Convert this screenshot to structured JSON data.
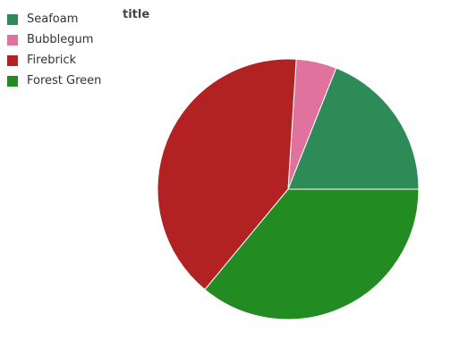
{
  "chart_data": {
    "type": "pie",
    "title": "title",
    "categories": [
      "Seafoam",
      "Bubblegum",
      "Firebrick",
      "Forest Green"
    ],
    "values": [
      19,
      5,
      40,
      36
    ],
    "colors": [
      "#2e8b57",
      "#e0739e",
      "#b22222",
      "#228b22"
    ],
    "legend_position": "left"
  }
}
